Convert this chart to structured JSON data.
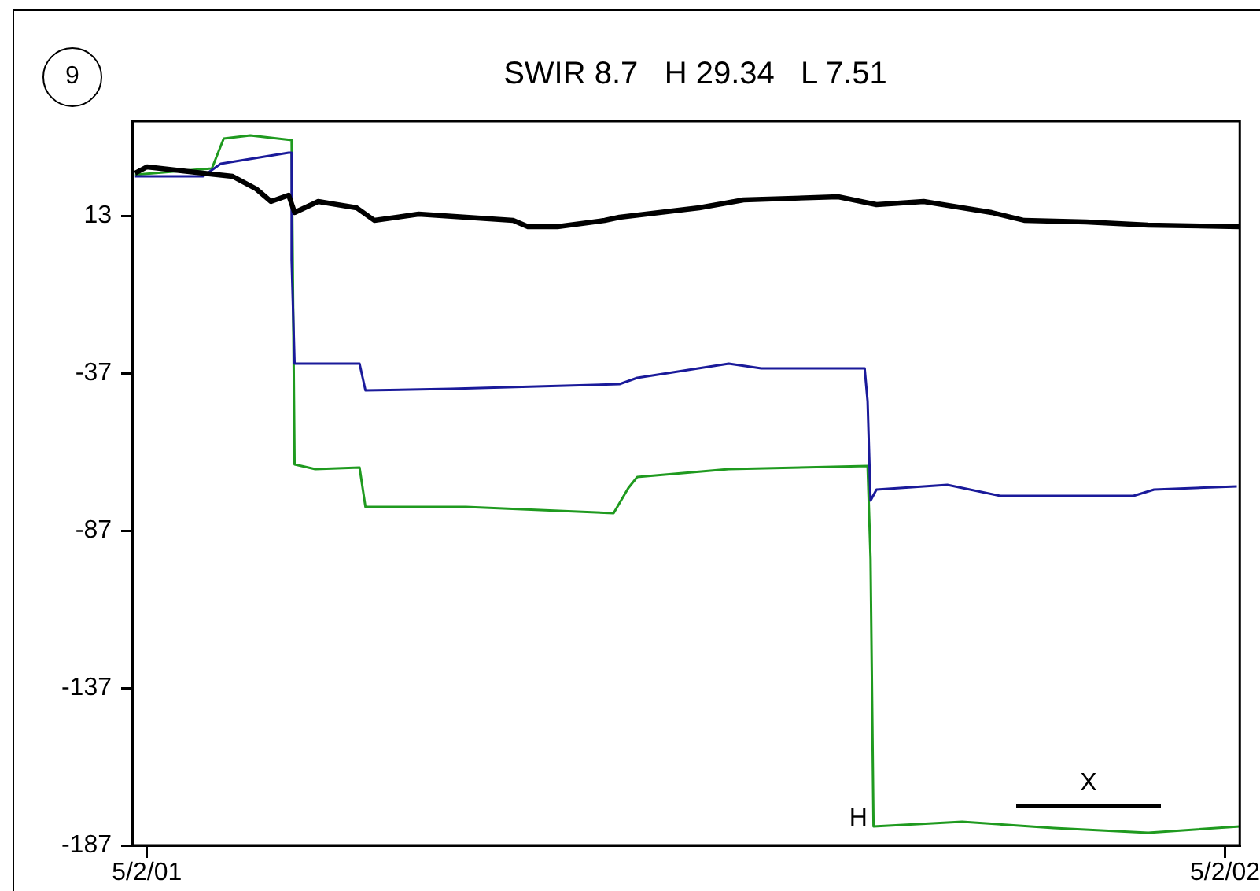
{
  "chart_data": {
    "type": "line",
    "title": "SWIR 8.7   H 29.34   L 7.51",
    "annotations": [
      "9",
      {
        "text": "H",
        "x": "2002-01-02",
        "y": -181
      },
      "X"
    ],
    "series": [
      {
        "color": "#000000",
        "x": [
          "2001-04-28",
          "2001-05-02",
          "2001-05-21",
          "2001-05-31",
          "2001-06-08",
          "2001-06-13",
          "2001-06-19",
          "2001-06-21",
          "2001-06-29",
          "2001-07-12",
          "2001-07-18",
          "2001-08-02",
          "2001-09-03",
          "2001-09-08",
          "2001-09-18",
          "2001-10-04",
          "2001-10-09",
          "2001-11-05",
          "2001-11-20",
          "2001-12-22",
          "2002-01-04",
          "2002-01-20",
          "2002-02-12",
          "2002-02-23",
          "2002-03-16",
          "2002-04-06",
          "2002-05-07"
        ],
        "values": [
          26.5,
          28.5,
          26.5,
          25.5,
          21.5,
          17.5,
          19.5,
          14,
          17.5,
          15.5,
          11.5,
          13.5,
          11.5,
          9.5,
          9.5,
          11.5,
          12.5,
          15.5,
          18,
          19,
          16.5,
          17.5,
          14,
          11.5,
          11,
          10,
          9.5
        ]
      },
      {
        "color": "#1a1a9a",
        "x": [
          "2001-04-28",
          "2001-05-21",
          "2001-05-27",
          "2001-06-19",
          "2001-06-20",
          "2001-06-20",
          "2001-06-21",
          "2001-07-13",
          "2001-07-15",
          "2001-08-13",
          "2001-10-09",
          "2001-10-15",
          "2001-11-15",
          "2001-11-26",
          "2001-12-31",
          "2002-01-01",
          "2002-01-02",
          "2002-01-04",
          "2002-01-28",
          "2002-02-15",
          "2002-04-01",
          "2002-04-08",
          "2002-05-06"
        ],
        "values": [
          25.5,
          25.5,
          29.5,
          33,
          33,
          -1,
          -34,
          -34,
          -42.5,
          -42,
          -40.5,
          -38.5,
          -34,
          -35.5,
          -35.5,
          -46,
          -77.5,
          -74,
          -72.5,
          -76,
          -76,
          -74,
          -73
        ]
      },
      {
        "color": "#1f9a1f",
        "x": [
          "2001-04-28",
          "2001-05-24",
          "2001-05-28",
          "2001-06-06",
          "2001-06-20",
          "2001-06-21",
          "2001-06-28",
          "2001-07-13",
          "2001-07-15",
          "2001-08-18",
          "2001-10-07",
          "2001-10-12",
          "2001-10-15",
          "2001-11-15",
          "2002-01-01",
          "2002-01-02",
          "2002-01-03",
          "2002-02-02",
          "2002-03-05",
          "2002-04-06",
          "2002-05-07"
        ],
        "values": [
          26,
          28,
          37.5,
          38.5,
          37,
          -66,
          -67.5,
          -67,
          -79.5,
          -79.5,
          -81.5,
          -73.5,
          -70,
          -67.5,
          -66.5,
          -96,
          -181,
          -179.5,
          -181.5,
          -183,
          -181
        ]
      }
    ],
    "xlim": [
      "2001-04-27",
      "2002-05-07"
    ],
    "xticks": [
      {
        "value": "2001-05-02",
        "label": "5/2/01"
      },
      {
        "value": "2002-05-02",
        "label": "5/2/02"
      }
    ],
    "ylim": [
      -187,
      43
    ],
    "yticks": [
      13,
      -37,
      -87,
      -137,
      -187
    ],
    "grid": false,
    "legend": false,
    "marker": "none",
    "line_style": "solid"
  }
}
